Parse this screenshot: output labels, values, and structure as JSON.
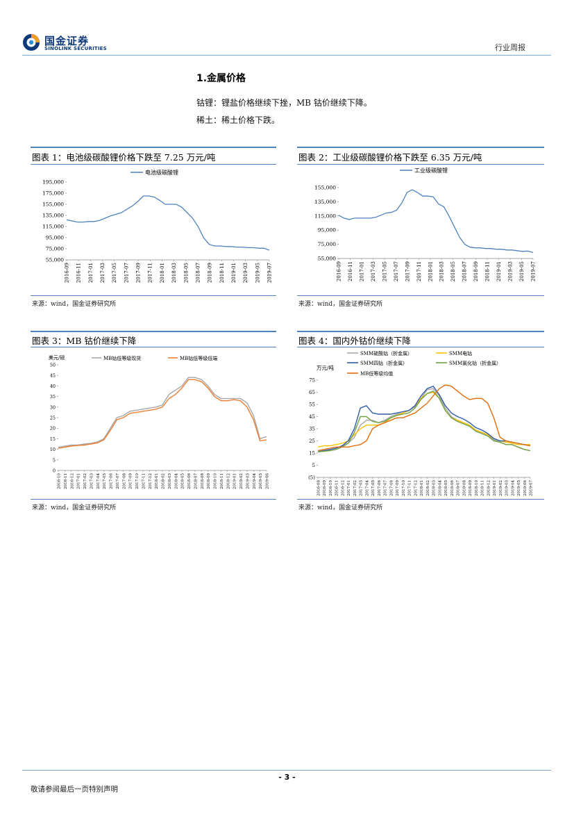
{
  "header": {
    "logo_cn": "国金证券",
    "logo_en": "SINOLINK SECURITIES",
    "report_type": "行业周报"
  },
  "section": {
    "title": "1.金属价格",
    "para1": "钴锂：锂盐价格继续下挫，MB 钴价继续下降。",
    "para2": "稀土：稀土价格下跌。"
  },
  "figures": [
    {
      "title": "图表 1：电池级碳酸锂价格下跌至 7.25 万元/吨",
      "source": "来源：wind，国金证券研究所"
    },
    {
      "title": "图表 2：工业级碳酸锂价格下跌至 6.35 万元/吨",
      "source": "来源：wind，国金证券研究所"
    },
    {
      "title": "图表 3：MB 钴价继续下降",
      "source": "来源：wind，国金证券研究所"
    },
    {
      "title": "图表 4：国内外钴价继续下降",
      "source": "来源：wind，国金证券研究所"
    }
  ],
  "chart_data": [
    {
      "type": "line",
      "ylim": [
        55000,
        195000
      ],
      "yticks": [
        "195,000",
        "175,000",
        "155,000",
        "135,000",
        "115,000",
        "95,000",
        "75,000",
        "55,000"
      ],
      "ytick_values": [
        195000,
        175000,
        155000,
        135000,
        115000,
        95000,
        75000,
        55000
      ],
      "xticks": [
        "2016-09",
        "2016-11",
        "2017-01",
        "2017-03",
        "2017-05",
        "2017-07",
        "2017-09",
        "2017-11",
        "2018-01",
        "2018-03",
        "2018-05",
        "2018-07",
        "2018-09",
        "2018-11",
        "2019-01",
        "2019-03",
        "2019-05",
        "2019-07"
      ],
      "series": [
        {
          "name": "电池级碳酸锂",
          "color": "#4f81bd",
          "values": [
            127000,
            125000,
            123000,
            123000,
            124000,
            124000,
            126000,
            130000,
            134000,
            137000,
            140000,
            146000,
            152000,
            160000,
            170000,
            170000,
            168000,
            162000,
            155000,
            155000,
            155000,
            150000,
            140000,
            130000,
            115000,
            95000,
            83000,
            80000,
            80000,
            79000,
            79000,
            78000,
            78000,
            77000,
            77000,
            76000,
            76000,
            72500
          ]
        }
      ]
    },
    {
      "type": "line",
      "ylim": [
        55000,
        155000
      ],
      "yticks": [
        "155,000",
        "135,000",
        "115,000",
        "95,000",
        "75,000",
        "55,000"
      ],
      "ytick_values": [
        155000,
        135000,
        115000,
        95000,
        75000,
        55000
      ],
      "xticks": [
        "2016-09",
        "2016-11",
        "2017-01",
        "2017-03",
        "2017-05",
        "2017-07",
        "2017-09",
        "2017-11",
        "2018-01",
        "2018-03",
        "2018-05",
        "2018-07",
        "2018-09",
        "2018-11",
        "2019-01",
        "2019-03",
        "2019-05",
        "2019-07"
      ],
      "series": [
        {
          "name": "工业级碳酸锂",
          "color": "#4f81bd",
          "values": [
            116000,
            112000,
            110000,
            112000,
            112000,
            112000,
            112000,
            113000,
            116000,
            119000,
            120000,
            123000,
            133000,
            148000,
            152000,
            148000,
            143000,
            143000,
            142000,
            132000,
            128000,
            115000,
            100000,
            85000,
            75000,
            71000,
            70000,
            70000,
            69000,
            69000,
            68000,
            68000,
            67000,
            67000,
            66000,
            65000,
            65500,
            63500
          ]
        }
      ]
    },
    {
      "type": "line",
      "ylabel": "美元/磅",
      "ylim": [
        0,
        50
      ],
      "yticks": [
        "50",
        "45",
        "40",
        "35",
        "30",
        "25",
        "20",
        "15",
        "10",
        "5",
        "0"
      ],
      "ytick_values": [
        50,
        45,
        40,
        35,
        30,
        25,
        20,
        15,
        10,
        5,
        0
      ],
      "xticks": [
        "2016-10",
        "2016-11",
        "2016-12",
        "2017-01",
        "2017-02",
        "2017-03",
        "2017-04",
        "2017-05",
        "2017-06",
        "2017-07",
        "2017-08",
        "2017-09",
        "2017-10",
        "2017-11",
        "2017-12",
        "2018-01",
        "2018-02",
        "2018-03",
        "2018-04",
        "2018-05",
        "2018-06",
        "2018-07",
        "2018-08",
        "2018-09",
        "2018-10",
        "2018-11",
        "2018-12",
        "2019-01",
        "2019-02",
        "2019-03",
        "2019-04",
        "2019-05",
        "2019-06"
      ],
      "series": [
        {
          "name": "MB钴低等级现货",
          "color": "#a6a6a6",
          "values": [
            11,
            11.5,
            12,
            12,
            12.5,
            12.8,
            13.5,
            15,
            20,
            25,
            26,
            28,
            28.5,
            29,
            29.5,
            30,
            31,
            36,
            38,
            40,
            44,
            44,
            43,
            40,
            36,
            34,
            34,
            34,
            34,
            32,
            26,
            15,
            16
          ]
        },
        {
          "name": "MB钴低等级低端",
          "color": "#ed7d31",
          "values": [
            10.5,
            11,
            11.5,
            11.8,
            12,
            12.5,
            13,
            14.5,
            19,
            24,
            25,
            27,
            27.5,
            28,
            28.5,
            29,
            30,
            34,
            36,
            39,
            43,
            43,
            42,
            39,
            35,
            33,
            33,
            33.5,
            33,
            30,
            24,
            14,
            14.5
          ]
        }
      ]
    },
    {
      "type": "line",
      "ylabel": "万元/吨",
      "ylim": [
        -5,
        75
      ],
      "yticks": [
        "75",
        "65",
        "55",
        "45",
        "35",
        "25",
        "15",
        "5",
        "(5)"
      ],
      "ytick_values": [
        75,
        65,
        55,
        45,
        35,
        25,
        15,
        5,
        -5
      ],
      "xticks": [
        "2016-08",
        "2016-09",
        "2016-10",
        "2016-11",
        "2016-12",
        "2017-01",
        "2017-02",
        "2017-03",
        "2017-04",
        "2017-05",
        "2017-06",
        "2017-07",
        "2017-08",
        "2017-09",
        "2017-10",
        "2017-11",
        "2017-12",
        "2018-01",
        "2018-02",
        "2018-03",
        "2018-04",
        "2018-05",
        "2018-06",
        "2018-07",
        "2018-08",
        "2018-09",
        "2018-10",
        "2018-11",
        "2018-12",
        "2019-01",
        "2019-02",
        "2019-03",
        "2019-04",
        "2019-05",
        "2019-06",
        "2019-07"
      ],
      "series": [
        {
          "name": "SMM硫酸钴（折金属）",
          "color": "#a6a6a6",
          "values": [
            17,
            17,
            18,
            19,
            21,
            23,
            28,
            38,
            42,
            42,
            40,
            42,
            45,
            47,
            48,
            50,
            53,
            60,
            67,
            68,
            62,
            52,
            45,
            42,
            40,
            38,
            34,
            32,
            30,
            26,
            24,
            22,
            22,
            20,
            18,
            17
          ]
        },
        {
          "name": "SMM电钴",
          "color": "#ffc000",
          "values": [
            20,
            21,
            21,
            22,
            23,
            25,
            30,
            35,
            38,
            38,
            38,
            40,
            44,
            46,
            48,
            50,
            54,
            60,
            64,
            65,
            60,
            50,
            44,
            42,
            40,
            38,
            34,
            32,
            30,
            27,
            25,
            24,
            23,
            22,
            22,
            22
          ]
        },
        {
          "name": "SMM四钴（折金属）",
          "color": "#2e5ca8",
          "values": [
            16,
            17,
            18,
            19,
            21,
            25,
            35,
            52,
            54,
            48,
            47,
            47,
            47,
            48,
            49,
            50,
            54,
            62,
            68,
            70,
            63,
            54,
            48,
            45,
            43,
            40,
            36,
            34,
            31,
            27,
            25,
            25,
            24,
            23,
            22,
            21
          ]
        },
        {
          "name": "SMM氯化钴（折金属）",
          "color": "#70a044",
          "values": [
            16,
            16.5,
            17,
            18,
            20,
            23,
            32,
            45,
            45,
            41,
            40,
            41,
            44,
            46,
            47,
            48,
            52,
            59,
            64,
            66,
            60,
            50,
            44,
            41,
            39,
            37,
            33,
            31,
            29,
            25,
            24,
            22,
            22,
            20,
            18,
            17
          ]
        },
        {
          "name": "MB低等级均值",
          "color": "#e46c0a",
          "values": [
            17,
            18,
            19,
            20,
            20,
            20,
            21,
            22,
            25,
            35,
            38,
            40,
            42,
            44,
            44,
            46,
            48,
            52,
            56,
            62,
            68,
            71,
            70,
            66,
            62,
            59,
            60,
            60,
            56,
            44,
            28,
            25,
            24,
            23,
            22,
            21
          ]
        }
      ]
    }
  ],
  "footer": {
    "page_number": "- 3 -",
    "disclaimer": "敬请参阅最后一页特别声明"
  }
}
